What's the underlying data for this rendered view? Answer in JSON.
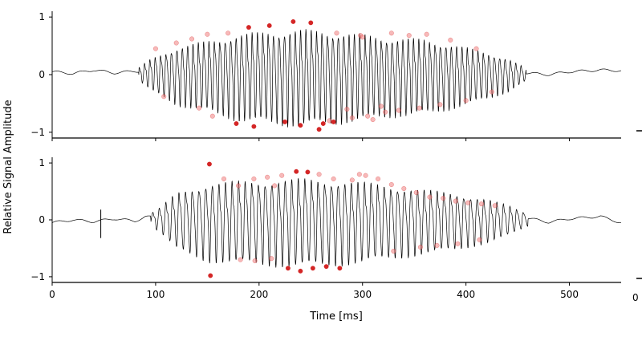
{
  "figure": {
    "ylabel": "Relative Signal Amplitude",
    "xlabel": "Time [ms]"
  },
  "chart_data": [
    {
      "type": "line",
      "panel": "top",
      "title": "",
      "xlabel": "",
      "ylabel": "",
      "xlim": [
        0,
        550
      ],
      "ylim": [
        -1.1,
        1.1
      ],
      "yticks": [
        1,
        0,
        -1
      ],
      "ytick_labels": [
        "1",
        "0",
        "−1"
      ],
      "show_xtick_labels": false,
      "envelope": {
        "t": [
          0,
          80,
          95,
          120,
          150,
          180,
          210,
          240,
          270,
          300,
          330,
          360,
          390,
          420,
          440,
          460,
          480,
          500,
          530,
          550
        ],
        "amp": [
          0.05,
          0.06,
          0.3,
          0.55,
          0.68,
          0.82,
          0.88,
          0.92,
          0.88,
          0.82,
          0.75,
          0.72,
          0.6,
          0.45,
          0.32,
          0.1,
          0.06,
          0.06,
          0.05,
          0.05
        ]
      },
      "baseline": [
        {
          "t": 0,
          "y": 0.05
        },
        {
          "t": 20,
          "y": 0.02
        },
        {
          "t": 40,
          "y": 0.08
        },
        {
          "t": 60,
          "y": 0.03
        },
        {
          "t": 80,
          "y": 0.06
        },
        {
          "t": 450,
          "y": 0.04
        },
        {
          "t": 480,
          "y": 0.0
        },
        {
          "t": 500,
          "y": 0.05
        },
        {
          "t": 530,
          "y": 0.08
        },
        {
          "t": 550,
          "y": 0.07
        }
      ],
      "period_ms": 5.2,
      "markers": [
        {
          "t": 100,
          "y": 0.45
        },
        {
          "t": 108,
          "y": -0.38
        },
        {
          "t": 120,
          "y": 0.55
        },
        {
          "t": 135,
          "y": 0.62
        },
        {
          "t": 142,
          "y": -0.58
        },
        {
          "t": 150,
          "y": 0.7
        },
        {
          "t": 155,
          "y": -0.72
        },
        {
          "t": 170,
          "y": 0.72
        },
        {
          "t": 178,
          "y": -0.85
        },
        {
          "t": 190,
          "y": 0.82
        },
        {
          "t": 195,
          "y": -0.9
        },
        {
          "t": 210,
          "y": 0.85
        },
        {
          "t": 225,
          "y": -0.82
        },
        {
          "t": 233,
          "y": 0.92
        },
        {
          "t": 240,
          "y": -0.88
        },
        {
          "t": 250,
          "y": 0.9
        },
        {
          "t": 258,
          "y": -0.95
        },
        {
          "t": 262,
          "y": -0.85
        },
        {
          "t": 268,
          "y": -0.8
        },
        {
          "t": 272,
          "y": -0.82
        },
        {
          "t": 275,
          "y": 0.72
        },
        {
          "t": 285,
          "y": -0.6
        },
        {
          "t": 290,
          "y": -0.75
        },
        {
          "t": 298,
          "y": 0.68
        },
        {
          "t": 300,
          "y": 0.65
        },
        {
          "t": 305,
          "y": -0.72
        },
        {
          "t": 310,
          "y": -0.78
        },
        {
          "t": 318,
          "y": -0.55
        },
        {
          "t": 322,
          "y": -0.65
        },
        {
          "t": 328,
          "y": 0.72
        },
        {
          "t": 335,
          "y": -0.62
        },
        {
          "t": 345,
          "y": 0.68
        },
        {
          "t": 355,
          "y": -0.58
        },
        {
          "t": 362,
          "y": 0.7
        },
        {
          "t": 375,
          "y": -0.52
        },
        {
          "t": 385,
          "y": 0.6
        },
        {
          "t": 400,
          "y": -0.45
        },
        {
          "t": 410,
          "y": 0.45
        },
        {
          "t": 425,
          "y": -0.3
        }
      ]
    },
    {
      "type": "line",
      "panel": "bottom",
      "title": "",
      "xlabel": "Time [ms]",
      "ylabel": "",
      "xlim": [
        0,
        550
      ],
      "ylim": [
        -1.1,
        1.1
      ],
      "yticks": [
        1,
        0,
        -1
      ],
      "ytick_labels": [
        "1",
        "0",
        "−1"
      ],
      "xticks": [
        0,
        100,
        200,
        300,
        400,
        500
      ],
      "xtick_labels": [
        "0",
        "100",
        "200",
        "300",
        "400",
        "500"
      ],
      "envelope": {
        "t": [
          0,
          90,
          105,
          120,
          150,
          180,
          210,
          240,
          270,
          300,
          330,
          360,
          390,
          420,
          440,
          460,
          480,
          500,
          530,
          550
        ],
        "amp": [
          0.03,
          0.05,
          0.25,
          0.55,
          0.75,
          0.8,
          0.82,
          0.85,
          0.82,
          0.78,
          0.7,
          0.62,
          0.55,
          0.42,
          0.3,
          0.12,
          0.05,
          0.04,
          0.03,
          0.03
        ]
      },
      "baseline": [
        {
          "t": 0,
          "y": -0.05
        },
        {
          "t": 20,
          "y": 0.0
        },
        {
          "t": 40,
          "y": -0.03
        },
        {
          "t": 60,
          "y": 0.02
        },
        {
          "t": 80,
          "y": -0.02
        },
        {
          "t": 90,
          "y": 0.05
        },
        {
          "t": 460,
          "y": 0.03
        },
        {
          "t": 480,
          "y": -0.04
        },
        {
          "t": 500,
          "y": 0.02
        },
        {
          "t": 530,
          "y": 0.06
        },
        {
          "t": 550,
          "y": -0.05
        }
      ],
      "spike": {
        "t": 47,
        "ymin": -0.32,
        "ymax": 0.18
      },
      "period_ms": 6.4,
      "markers": [
        {
          "t": 152,
          "y": 0.98
        },
        {
          "t": 153,
          "y": -0.98
        },
        {
          "t": 166,
          "y": 0.72
        },
        {
          "t": 180,
          "y": 0.6
        },
        {
          "t": 195,
          "y": 0.72
        },
        {
          "t": 208,
          "y": 0.75
        },
        {
          "t": 215,
          "y": 0.6
        },
        {
          "t": 222,
          "y": 0.78
        },
        {
          "t": 228,
          "y": -0.85
        },
        {
          "t": 236,
          "y": 0.85
        },
        {
          "t": 240,
          "y": -0.9
        },
        {
          "t": 247,
          "y": 0.84
        },
        {
          "t": 252,
          "y": -0.85
        },
        {
          "t": 258,
          "y": 0.8
        },
        {
          "t": 265,
          "y": -0.82
        },
        {
          "t": 272,
          "y": 0.72
        },
        {
          "t": 278,
          "y": -0.85
        },
        {
          "t": 290,
          "y": 0.7
        },
        {
          "t": 297,
          "y": 0.8
        },
        {
          "t": 303,
          "y": 0.78
        },
        {
          "t": 315,
          "y": 0.72
        },
        {
          "t": 328,
          "y": 0.62
        },
        {
          "t": 340,
          "y": 0.55
        },
        {
          "t": 352,
          "y": 0.48
        },
        {
          "t": 365,
          "y": 0.4
        },
        {
          "t": 378,
          "y": 0.38
        },
        {
          "t": 390,
          "y": 0.33
        },
        {
          "t": 402,
          "y": 0.3
        },
        {
          "t": 415,
          "y": 0.28
        },
        {
          "t": 428,
          "y": 0.25
        },
        {
          "t": 182,
          "y": -0.7
        },
        {
          "t": 196,
          "y": -0.72
        },
        {
          "t": 212,
          "y": -0.68
        },
        {
          "t": 330,
          "y": -0.55
        },
        {
          "t": 356,
          "y": -0.48
        },
        {
          "t": 372,
          "y": -0.45
        },
        {
          "t": 392,
          "y": -0.42
        },
        {
          "t": 413,
          "y": -0.35
        }
      ]
    }
  ],
  "colors": {
    "signal": "#000000",
    "marker_fill": "#f08080",
    "marker_edge": "#cc0000",
    "axis": "#000000"
  }
}
